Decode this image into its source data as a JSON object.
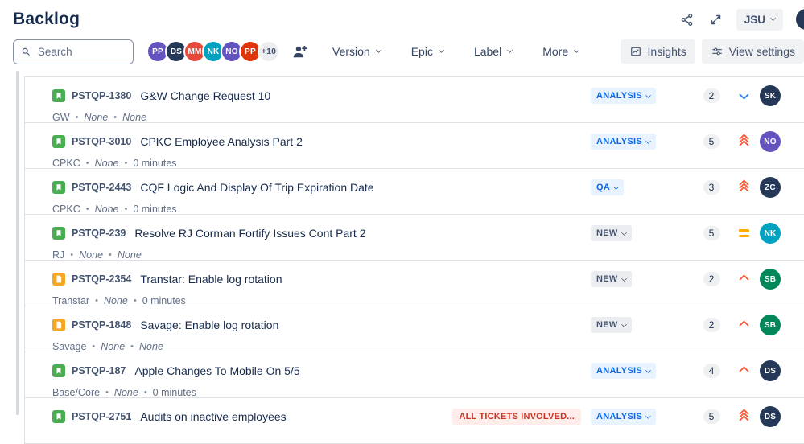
{
  "header": {
    "title": "Backlog",
    "project_selector": "JSU"
  },
  "toolbar": {
    "search_placeholder": "Search",
    "avatars": [
      {
        "initials": "PP",
        "color": "#6554C0"
      },
      {
        "initials": "DS",
        "color": "#253858"
      },
      {
        "initials": "MM",
        "color": "#E5493A"
      },
      {
        "initials": "NK",
        "color": "#00A3BF"
      },
      {
        "initials": "NO",
        "color": "#6554C0"
      },
      {
        "initials": "PP",
        "color": "#DE350B"
      }
    ],
    "overflow_count": "+10",
    "filters": [
      {
        "label": "Version"
      },
      {
        "label": "Epic"
      },
      {
        "label": "Label"
      },
      {
        "label": "More"
      }
    ],
    "insights_label": "Insights",
    "view_settings_label": "View settings"
  },
  "colors": {
    "status_blue_bg": "#E9F2FF",
    "status_blue_text": "#0C66E4",
    "status_gray_bg": "#ECEDF0",
    "status_gray_text": "#44546F",
    "alert_bg": "#FFECEB",
    "alert_text": "#CA3521",
    "priority_red": "#FF5630",
    "priority_yellow": "#FFAB00",
    "priority_blue": "#2684FF",
    "story_icon": "#4BAD52",
    "doc_icon": "#F5A623"
  },
  "rows": [
    {
      "key": "PSTQP-1380",
      "title": "G&W Change Request 10",
      "type": "story",
      "meta": [
        {
          "text": "GW",
          "italic": false
        },
        {
          "text": "None",
          "italic": true
        },
        {
          "text": "None",
          "italic": true
        }
      ],
      "alert": "",
      "status": "ANALYSIS",
      "status_style": "blue",
      "estimate": "2",
      "priority": "low",
      "assignee": {
        "initials": "SK",
        "color": "#253858"
      }
    },
    {
      "key": "PSTQP-3010",
      "title": "CPKC Employee Analysis Part 2",
      "type": "story",
      "meta": [
        {
          "text": "CPKC",
          "italic": false
        },
        {
          "text": "None",
          "italic": true
        },
        {
          "text": "0 minutes",
          "italic": false
        }
      ],
      "alert": "",
      "status": "ANALYSIS",
      "status_style": "blue",
      "estimate": "5",
      "priority": "highest",
      "assignee": {
        "initials": "NO",
        "color": "#6554C0"
      }
    },
    {
      "key": "PSTQP-2443",
      "title": "CQF Logic And Display Of Trip Expiration Date",
      "type": "story",
      "meta": [
        {
          "text": "CPKC",
          "italic": false
        },
        {
          "text": "None",
          "italic": true
        },
        {
          "text": "0 minutes",
          "italic": false
        }
      ],
      "alert": "",
      "status": "QA",
      "status_style": "blue",
      "estimate": "3",
      "priority": "highest",
      "assignee": {
        "initials": "ZC",
        "color": "#253858"
      }
    },
    {
      "key": "PSTQP-239",
      "title": "Resolve RJ Corman Fortify Issues Cont Part 2",
      "type": "story",
      "meta": [
        {
          "text": "RJ",
          "italic": false
        },
        {
          "text": "None",
          "italic": true
        },
        {
          "text": "None",
          "italic": true
        }
      ],
      "alert": "",
      "status": "NEW",
      "status_style": "gray",
      "estimate": "5",
      "priority": "medium",
      "assignee": {
        "initials": "NK",
        "color": "#00A3BF"
      }
    },
    {
      "key": "PSTQP-2354",
      "title": "Transtar: Enable log rotation",
      "type": "doc",
      "meta": [
        {
          "text": "Transtar",
          "italic": false
        },
        {
          "text": "None",
          "italic": true
        },
        {
          "text": "0 minutes",
          "italic": false
        }
      ],
      "alert": "",
      "status": "NEW",
      "status_style": "gray",
      "estimate": "2",
      "priority": "high",
      "assignee": {
        "initials": "SB",
        "color": "#00875A"
      }
    },
    {
      "key": "PSTQP-1848",
      "title": "Savage: Enable log rotation",
      "type": "doc",
      "meta": [
        {
          "text": "Savage",
          "italic": false
        },
        {
          "text": "None",
          "italic": true
        },
        {
          "text": "None",
          "italic": true
        }
      ],
      "alert": "",
      "status": "NEW",
      "status_style": "gray",
      "estimate": "2",
      "priority": "high",
      "assignee": {
        "initials": "SB",
        "color": "#00875A"
      }
    },
    {
      "key": "PSTQP-187",
      "title": "Apple Changes To Mobile On 5/5",
      "type": "story",
      "meta": [
        {
          "text": "Base/Core",
          "italic": false
        },
        {
          "text": "None",
          "italic": true
        },
        {
          "text": "0 minutes",
          "italic": false
        }
      ],
      "alert": "",
      "status": "ANALYSIS",
      "status_style": "blue",
      "estimate": "4",
      "priority": "high",
      "assignee": {
        "initials": "DS",
        "color": "#253858"
      }
    },
    {
      "key": "PSTQP-2751",
      "title": "Audits on inactive employees",
      "type": "story",
      "meta": [],
      "alert": "ALL TICKETS INVOLVED...",
      "status": "ANALYSIS",
      "status_style": "blue",
      "estimate": "5",
      "priority": "highest",
      "assignee": {
        "initials": "DS",
        "color": "#253858"
      }
    }
  ]
}
